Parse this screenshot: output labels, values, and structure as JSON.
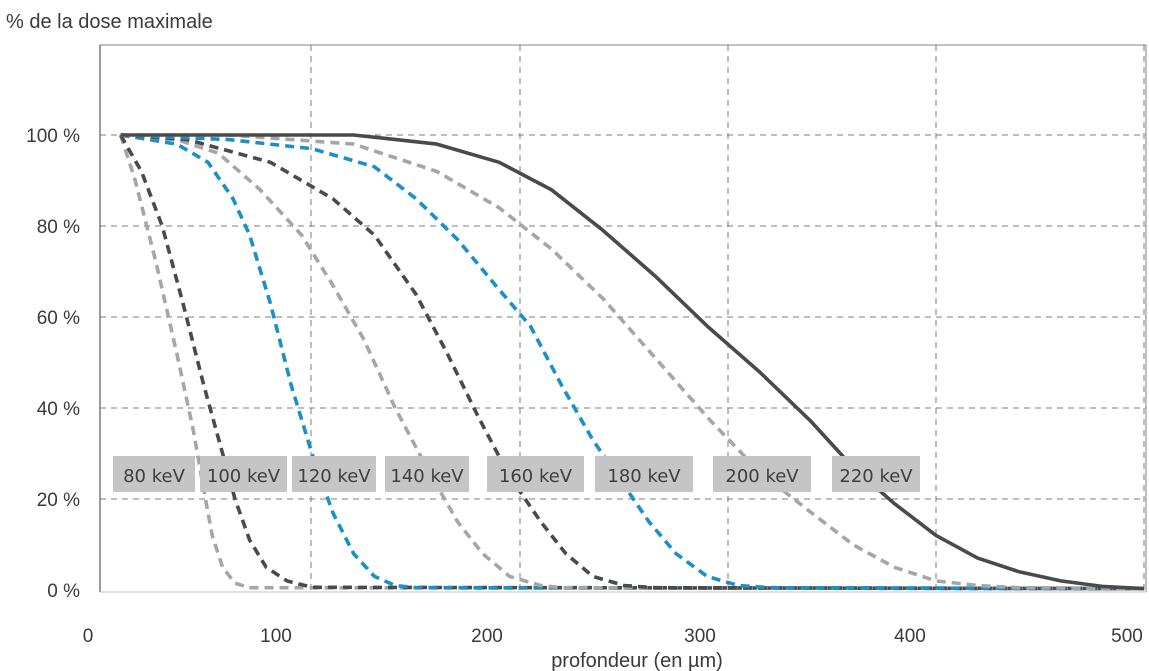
{
  "chart_data": {
    "type": "line",
    "ylabel": "% de la dose maximale",
    "xlabel": "profondeur (en µm)",
    "xlim": [
      0,
      500
    ],
    "ylim": [
      0,
      100
    ],
    "x_ticks": [
      0,
      100,
      200,
      300,
      400,
      500
    ],
    "x_tick_labels": [
      "0",
      "100",
      "200",
      "300",
      "400",
      "500"
    ],
    "y_ticks": [
      0,
      20,
      40,
      60,
      80,
      100
    ],
    "y_tick_labels": [
      "0 %",
      "20 %",
      "40 %",
      "60 %",
      "80 %",
      "100 %"
    ],
    "grid": true,
    "series": [
      {
        "name": "80 keV",
        "color": "#a6a6a6",
        "style": "dashed",
        "points": [
          [
            8,
            100
          ],
          [
            15,
            90
          ],
          [
            25,
            72
          ],
          [
            35,
            52
          ],
          [
            43,
            35
          ],
          [
            48,
            22
          ],
          [
            52,
            12
          ],
          [
            57,
            5
          ],
          [
            63,
            1.5
          ],
          [
            70,
            0.5
          ],
          [
            500,
            0.3
          ]
        ]
      },
      {
        "name": "100 keV",
        "color": "#4a4a4a",
        "style": "dashed",
        "points": [
          [
            8,
            100
          ],
          [
            18,
            92
          ],
          [
            28,
            80
          ],
          [
            38,
            63
          ],
          [
            48,
            45
          ],
          [
            57,
            30
          ],
          [
            63,
            20
          ],
          [
            70,
            11
          ],
          [
            78,
            5
          ],
          [
            88,
            2
          ],
          [
            100,
            0.6
          ],
          [
            500,
            0.3
          ]
        ]
      },
      {
        "name": "120 keV",
        "color": "#1a8fc8",
        "style": "dashed",
        "points": [
          [
            8,
            100
          ],
          [
            35,
            98
          ],
          [
            50,
            94
          ],
          [
            62,
            86
          ],
          [
            70,
            78
          ],
          [
            80,
            63
          ],
          [
            90,
            45
          ],
          [
            100,
            30
          ],
          [
            110,
            17
          ],
          [
            120,
            8
          ],
          [
            130,
            3
          ],
          [
            140,
            1
          ],
          [
            150,
            0.5
          ],
          [
            500,
            0.3
          ]
        ]
      },
      {
        "name": "140 keV",
        "color": "#a6a6a6",
        "style": "dashed",
        "points": [
          [
            8,
            100
          ],
          [
            35,
            99
          ],
          [
            55,
            96
          ],
          [
            75,
            88
          ],
          [
            95,
            78
          ],
          [
            110,
            67
          ],
          [
            125,
            55
          ],
          [
            140,
            40
          ],
          [
            155,
            27
          ],
          [
            170,
            15
          ],
          [
            182,
            8
          ],
          [
            195,
            3
          ],
          [
            210,
            1
          ],
          [
            220,
            0.5
          ],
          [
            500,
            0.3
          ]
        ]
      },
      {
        "name": "160 keV",
        "color": "#4a4a4a",
        "style": "dashed",
        "points": [
          [
            8,
            100
          ],
          [
            40,
            99
          ],
          [
            80,
            94
          ],
          [
            110,
            86
          ],
          [
            130,
            78
          ],
          [
            150,
            65
          ],
          [
            165,
            52
          ],
          [
            180,
            38
          ],
          [
            195,
            25
          ],
          [
            210,
            15
          ],
          [
            222,
            8
          ],
          [
            235,
            3
          ],
          [
            250,
            1
          ],
          [
            265,
            0.5
          ],
          [
            500,
            0.3
          ]
        ]
      },
      {
        "name": "180 keV",
        "color": "#1a8fc8",
        "style": "dashed",
        "points": [
          [
            8,
            100
          ],
          [
            60,
            99
          ],
          [
            100,
            97
          ],
          [
            130,
            93
          ],
          [
            150,
            86
          ],
          [
            170,
            77
          ],
          [
            190,
            66
          ],
          [
            205,
            58
          ],
          [
            220,
            45
          ],
          [
            235,
            33
          ],
          [
            250,
            23
          ],
          [
            262,
            15
          ],
          [
            275,
            8
          ],
          [
            290,
            3
          ],
          [
            305,
            1
          ],
          [
            320,
            0.5
          ],
          [
            500,
            0.3
          ]
        ]
      },
      {
        "name": "200 keV",
        "color": "#a6a6a6",
        "style": "dashed",
        "points": [
          [
            8,
            100
          ],
          [
            60,
            100
          ],
          [
            120,
            98
          ],
          [
            160,
            92
          ],
          [
            190,
            84
          ],
          [
            215,
            75
          ],
          [
            240,
            64
          ],
          [
            265,
            51
          ],
          [
            290,
            38
          ],
          [
            315,
            26
          ],
          [
            340,
            17
          ],
          [
            360,
            10
          ],
          [
            380,
            5
          ],
          [
            400,
            2
          ],
          [
            420,
            1
          ],
          [
            440,
            0.5
          ],
          [
            500,
            0.3
          ]
        ]
      },
      {
        "name": "220 keV",
        "color": "#4a4a4a",
        "style": "solid",
        "points": [
          [
            8,
            100
          ],
          [
            60,
            100
          ],
          [
            120,
            100
          ],
          [
            160,
            98
          ],
          [
            190,
            94
          ],
          [
            215,
            88
          ],
          [
            240,
            79
          ],
          [
            265,
            69
          ],
          [
            290,
            58
          ],
          [
            315,
            48
          ],
          [
            340,
            37
          ],
          [
            360,
            27
          ],
          [
            380,
            19
          ],
          [
            400,
            12
          ],
          [
            420,
            7
          ],
          [
            440,
            4
          ],
          [
            460,
            2
          ],
          [
            480,
            0.8
          ],
          [
            500,
            0.3
          ]
        ]
      }
    ],
    "legend_labels": [
      "80 keV",
      "100 keV",
      "120 keV",
      "140 keV",
      "160 keV",
      "180 keV",
      "200 keV",
      "220 keV"
    ]
  }
}
